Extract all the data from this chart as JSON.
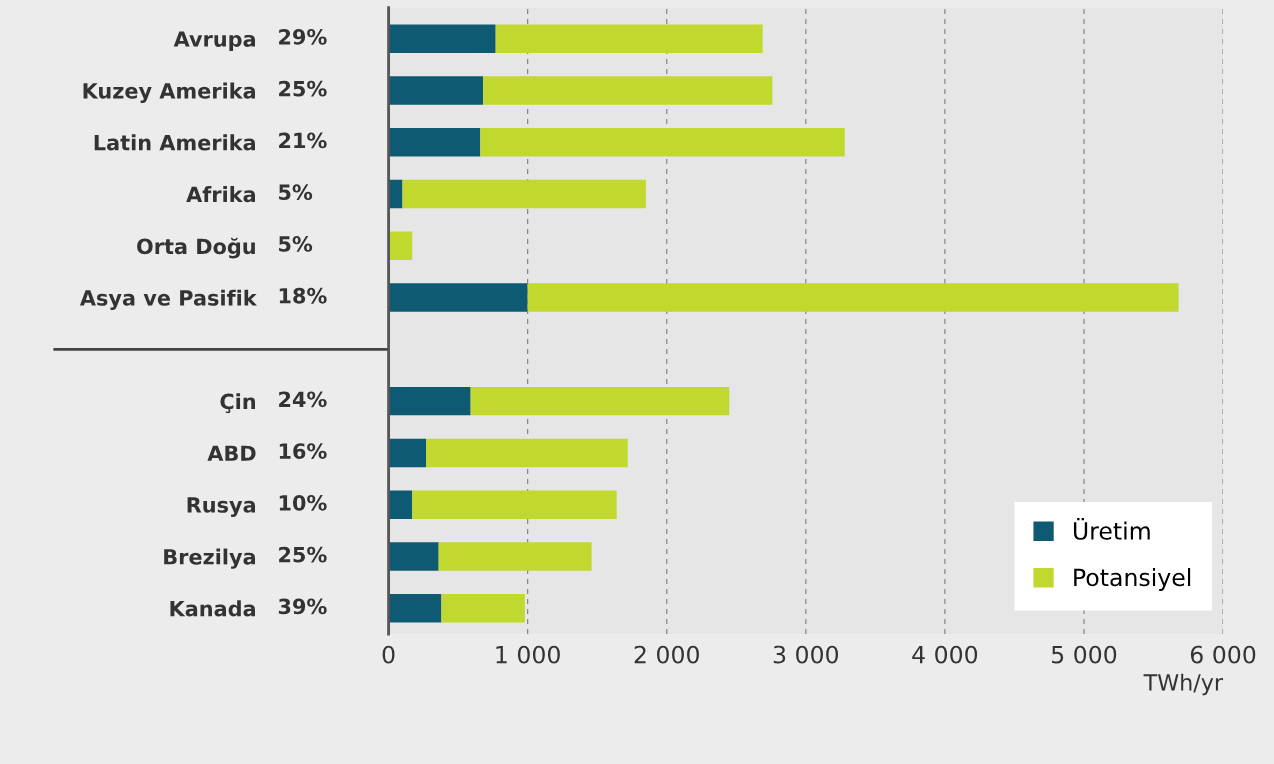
{
  "chart_data": {
    "type": "bar",
    "orientation": "horizontal",
    "stacked": true,
    "categories": [
      "Avrupa",
      "Kuzey Amerika",
      "Latin Amerika",
      "Afrika",
      "Orta Doğu",
      "Asya ve Pasifik",
      null,
      "Çin",
      "ABD",
      "Rusya",
      "Brezilya",
      "Kanada"
    ],
    "series": [
      {
        "name": "Üretim",
        "color": "#0e5a73",
        "values": [
          770,
          680,
          660,
          100,
          0,
          1000,
          null,
          590,
          270,
          170,
          360,
          380
        ]
      },
      {
        "name": "Potansiyel",
        "color": "#c1d82f",
        "values": [
          1920,
          2080,
          2620,
          1750,
          170,
          4680,
          null,
          1860,
          1450,
          1470,
          1100,
          600
        ]
      }
    ],
    "annotations": [
      "29%",
      "25%",
      "21%",
      "5%",
      "5%",
      "18%",
      "24%",
      "16%",
      "10%",
      "25%",
      "39%"
    ],
    "xlabel": "TWh/yr",
    "xlim": [
      0,
      6000
    ],
    "xticks": [
      0,
      {
        "value": 1000,
        "label": "1 000"
      },
      {
        "value": 2000,
        "label": "2 000"
      },
      {
        "value": 3000,
        "label": "3 000"
      },
      {
        "value": 4000,
        "label": "4 000"
      },
      {
        "value": 5000,
        "label": "5 000"
      },
      {
        "value": 6000,
        "label": "6 000"
      }
    ],
    "grid": "x",
    "legend": "bottom right"
  }
}
